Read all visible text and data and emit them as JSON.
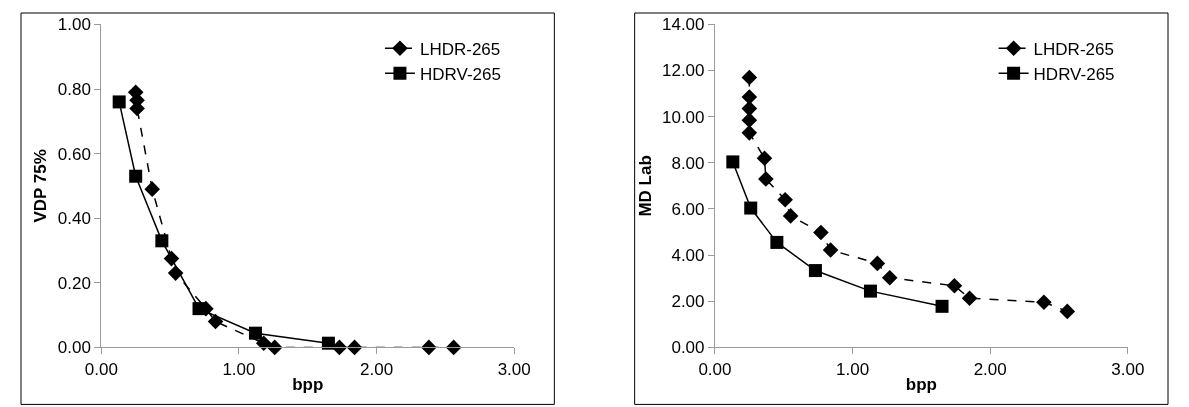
{
  "chart_data": [
    {
      "type": "line",
      "xlabel": "bpp",
      "ylabel": "VDP 75%",
      "xlim": [
        0,
        3
      ],
      "xticks": [
        {
          "value": 0,
          "label": "0.00"
        },
        {
          "value": 1,
          "label": "1.00"
        },
        {
          "value": 2,
          "label": "2.00"
        },
        {
          "value": 3,
          "label": "3.00"
        }
      ],
      "ylim": [
        0,
        1
      ],
      "yticks": [
        {
          "value": 0,
          "label": "0.00"
        },
        {
          "value": 0.2,
          "label": "0.20"
        },
        {
          "value": 0.4,
          "label": "0.40"
        },
        {
          "value": 0.6,
          "label": "0.60"
        },
        {
          "value": 0.8,
          "label": "0.80"
        },
        {
          "value": 1,
          "label": "1.00"
        }
      ],
      "legend": "top right",
      "series": [
        {
          "name": "LHDR-265",
          "color": "#000000",
          "marker": "diamond",
          "line_style": "dashed",
          "x": [
            0.25,
            0.26,
            0.26,
            0.37,
            0.51,
            0.54,
            0.76,
            0.83,
            1.18,
            1.26,
            1.73,
            1.84,
            2.38,
            2.56
          ],
          "values": [
            0.79,
            0.765,
            0.74,
            0.49,
            0.275,
            0.23,
            0.12,
            0.08,
            0.013,
            0,
            0,
            0,
            0,
            0
          ]
        },
        {
          "name": "HDRV-265",
          "color": "#000000",
          "marker": "square",
          "line_style": "solid",
          "x": [
            0.13,
            0.25,
            0.44,
            0.71,
            1.12,
            1.65
          ],
          "values": [
            0.76,
            0.53,
            0.33,
            0.12,
            0.044,
            0.013
          ]
        }
      ]
    },
    {
      "type": "line",
      "xlabel": "bpp",
      "ylabel": "MD Lab",
      "xlim": [
        0,
        3
      ],
      "xticks": [
        {
          "value": 0,
          "label": "0.00"
        },
        {
          "value": 1,
          "label": "1.00"
        },
        {
          "value": 2,
          "label": "2.00"
        },
        {
          "value": 3,
          "label": "3.00"
        }
      ],
      "ylim": [
        0,
        14
      ],
      "yticks": [
        {
          "value": 0,
          "label": "0.00"
        },
        {
          "value": 2,
          "label": "2.00"
        },
        {
          "value": 4,
          "label": "4.00"
        },
        {
          "value": 6,
          "label": "6.00"
        },
        {
          "value": 8,
          "label": "8.00"
        },
        {
          "value": 10,
          "label": "10.00"
        },
        {
          "value": 12,
          "label": "12.00"
        },
        {
          "value": 14,
          "label": "14.00"
        }
      ],
      "legend": "top right",
      "series": [
        {
          "name": "LHDR-265",
          "color": "#000000",
          "marker": "diamond",
          "line_style": "dashed",
          "x": [
            0.25,
            0.25,
            0.25,
            0.25,
            0.25,
            0.36,
            0.37,
            0.51,
            0.55,
            0.77,
            0.84,
            1.18,
            1.27,
            1.74,
            1.85,
            2.39,
            2.56
          ],
          "values": [
            11.7,
            10.85,
            10.35,
            9.85,
            9.3,
            8.2,
            7.3,
            6.4,
            5.7,
            4.98,
            4.22,
            3.64,
            3.02,
            2.67,
            2.13,
            1.96,
            1.56
          ]
        },
        {
          "name": "HDRV-265",
          "color": "#000000",
          "marker": "square",
          "line_style": "solid",
          "x": [
            0.13,
            0.26,
            0.45,
            0.73,
            1.13,
            1.65
          ],
          "values": [
            8.04,
            6.04,
            4.55,
            3.33,
            2.44,
            1.78
          ]
        }
      ]
    }
  ]
}
